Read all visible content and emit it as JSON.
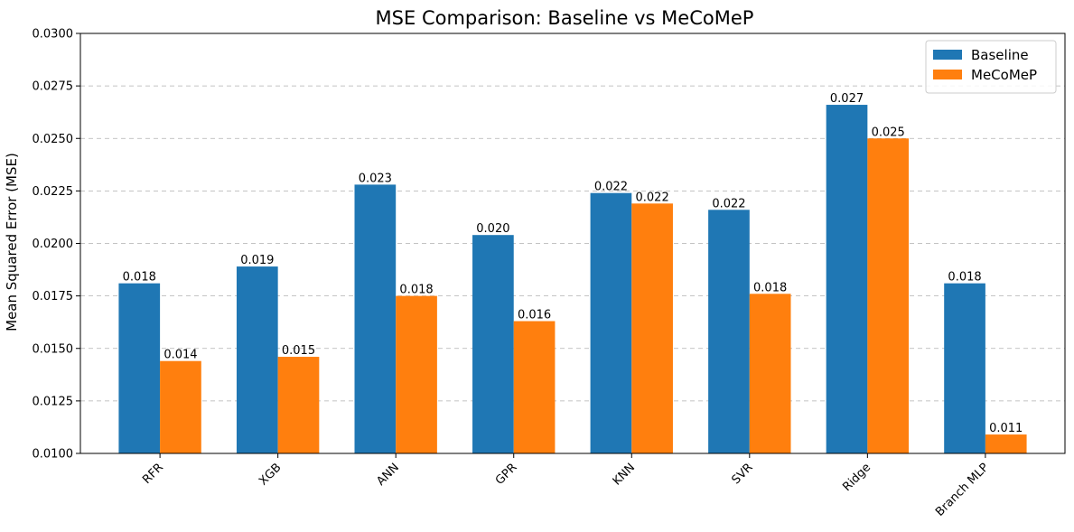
{
  "chart_data": {
    "type": "bar",
    "title": "MSE Comparison: Baseline vs MeCoMeP",
    "xlabel": "",
    "ylabel": "Mean Squared Error (MSE)",
    "categories": [
      "RFR",
      "XGB",
      "ANN",
      "GPR",
      "KNN",
      "SVR",
      "Ridge",
      "Branch MLP"
    ],
    "series": [
      {
        "name": "Baseline",
        "color": "#1f77b4",
        "values": [
          0.0181,
          0.0189,
          0.0228,
          0.0204,
          0.0224,
          0.0216,
          0.0266,
          0.0181
        ],
        "labels": [
          "0.018",
          "0.019",
          "0.023",
          "0.020",
          "0.022",
          "0.022",
          "0.027",
          "0.018"
        ]
      },
      {
        "name": "MeCoMeP",
        "color": "#ff7f0e",
        "values": [
          0.0144,
          0.0146,
          0.0175,
          0.0163,
          0.0219,
          0.0176,
          0.025,
          0.0109
        ],
        "labels": [
          "0.014",
          "0.015",
          "0.018",
          "0.016",
          "0.022",
          "0.018",
          "0.025",
          "0.011"
        ]
      }
    ],
    "ylim": [
      0.01,
      0.03
    ],
    "yticks": [
      0.01,
      0.0125,
      0.015,
      0.0175,
      0.02,
      0.0225,
      0.025,
      0.0275,
      0.03
    ],
    "ytick_labels": [
      "0.0100",
      "0.0125",
      "0.0150",
      "0.0175",
      "0.0200",
      "0.0225",
      "0.0250",
      "0.0275",
      "0.0300"
    ],
    "grid": "y-dashed",
    "legend_position": "top-right"
  }
}
